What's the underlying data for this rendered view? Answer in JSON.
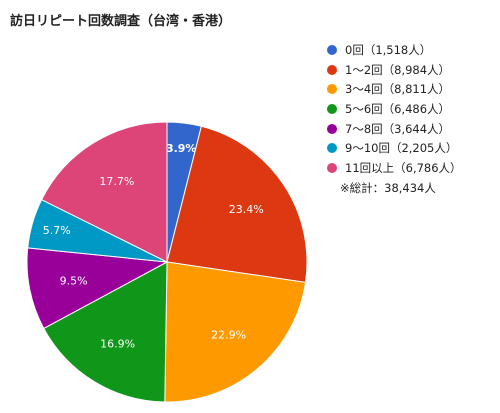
{
  "chart_data": {
    "type": "pie",
    "title": "訪日リピート回数調査（台湾・香港）",
    "start_angle_deg": 0,
    "direction": "clockwise",
    "slices": [
      {
        "label": "0回",
        "legend": "0回（1,518人）",
        "count": 1518,
        "percent_label": "3.9%",
        "color": "#3366cc"
      },
      {
        "label": "1〜2回",
        "legend": "1〜2回（8,984人）",
        "count": 8984,
        "percent_label": "23.4%",
        "color": "#dc3912"
      },
      {
        "label": "3〜4回",
        "legend": "3〜4回（8,811人）",
        "count": 8811,
        "percent_label": "22.9%",
        "color": "#ff9900"
      },
      {
        "label": "5〜6回",
        "legend": "5〜6回（6,486人）",
        "count": 6486,
        "percent_label": "16.9%",
        "color": "#109618"
      },
      {
        "label": "7〜8回",
        "legend": "7〜8回（3,644人）",
        "count": 3644,
        "percent_label": "9.5%",
        "color": "#990099"
      },
      {
        "label": "9〜10回",
        "legend": "9〜10回（2,205人）",
        "count": 2205,
        "percent_label": "5.7%",
        "color": "#0099c6"
      },
      {
        "label": "11回以上",
        "legend": "11回以上（6,786人）",
        "count": 6786,
        "percent_label": "17.7%",
        "color": "#dd4477"
      }
    ],
    "legend_position": "right",
    "note": "※総計：38,434人"
  }
}
